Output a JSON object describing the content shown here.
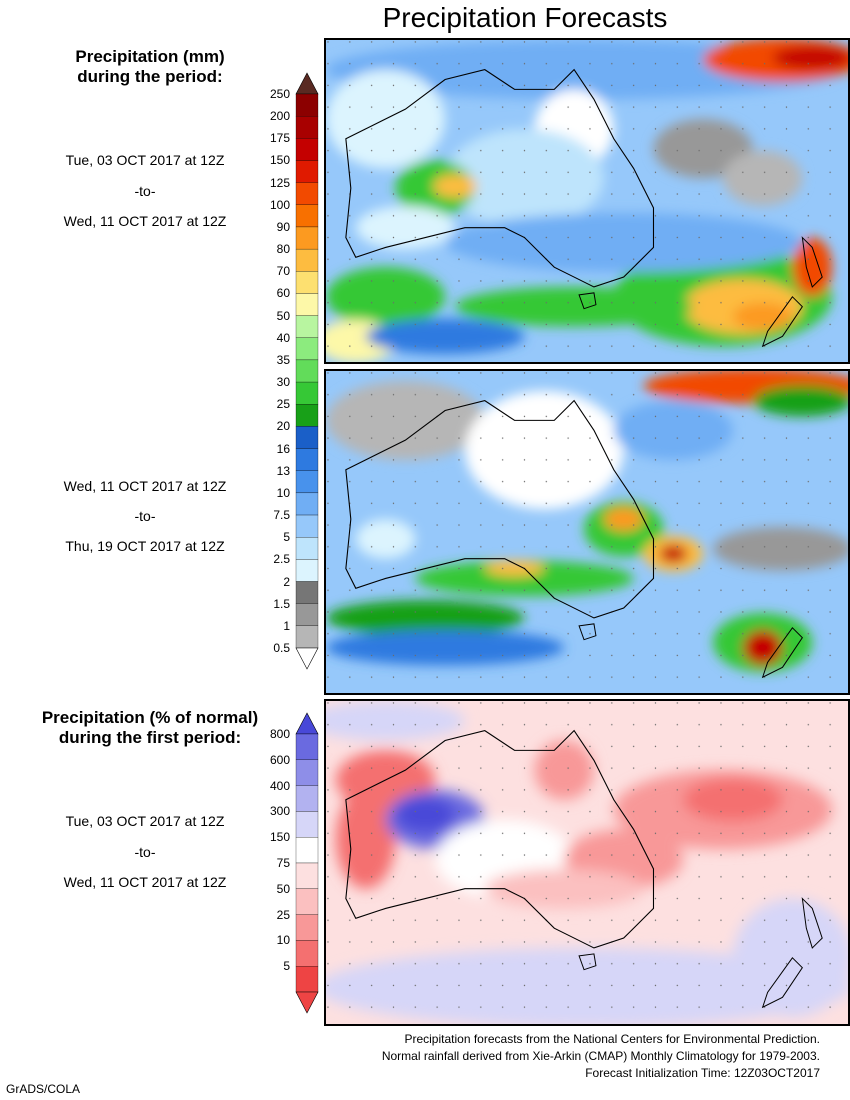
{
  "title": "Precipitation Forecasts",
  "amount_section": {
    "title_line1": "Precipitation (mm)",
    "title_line2": "during the period:",
    "periods": [
      {
        "start": "Tue, 03 OCT 2017 at 12Z",
        "sep": "-to-",
        "end": "Wed, 11 OCT 2017 at 12Z"
      },
      {
        "start": "Wed, 11 OCT 2017 at 12Z",
        "sep": "-to-",
        "end": "Thu, 19 OCT 2017 at 12Z"
      }
    ],
    "legend": [
      {
        "label": "250",
        "color": "#5a2a22"
      },
      {
        "label": "200",
        "color": "#8c0000"
      },
      {
        "label": "175",
        "color": "#a80000"
      },
      {
        "label": "150",
        "color": "#c40000"
      },
      {
        "label": "125",
        "color": "#e01a00"
      },
      {
        "label": "100",
        "color": "#f24a00"
      },
      {
        "label": "90",
        "color": "#f87000"
      },
      {
        "label": "80",
        "color": "#fc9a20"
      },
      {
        "label": "70",
        "color": "#fdbc40"
      },
      {
        "label": "60",
        "color": "#fde070"
      },
      {
        "label": "50",
        "color": "#fdf8a8"
      },
      {
        "label": "40",
        "color": "#b8f5a0"
      },
      {
        "label": "35",
        "color": "#8ceb7e"
      },
      {
        "label": "30",
        "color": "#62dc5a"
      },
      {
        "label": "25",
        "color": "#36c836"
      },
      {
        "label": "20",
        "color": "#18a018"
      },
      {
        "label": "16",
        "color": "#1a5fc8"
      },
      {
        "label": "13",
        "color": "#2e7ae0"
      },
      {
        "label": "10",
        "color": "#4892ec"
      },
      {
        "label": "7.5",
        "color": "#70aef4"
      },
      {
        "label": "5",
        "color": "#96c8fa"
      },
      {
        "label": "2.5",
        "color": "#bee4fc"
      },
      {
        "label": "2",
        "color": "#dcf4fe"
      },
      {
        "label": "1.5",
        "color": "#767676"
      },
      {
        "label": "1",
        "color": "#989898"
      },
      {
        "label": "0.5",
        "color": "#b6b6b6"
      }
    ]
  },
  "percent_section": {
    "title_line1": "Precipitation (% of normal)",
    "title_line2": "during the first period:",
    "period": {
      "start": "Tue, 03 OCT 2017 at 12Z",
      "sep": "-to-",
      "end": "Wed, 11 OCT 2017 at 12Z"
    },
    "legend": [
      {
        "label": "800",
        "color": "#4848d8"
      },
      {
        "label": "600",
        "color": "#6a6ae0"
      },
      {
        "label": "400",
        "color": "#8e8ee8"
      },
      {
        "label": "300",
        "color": "#b2b2f0"
      },
      {
        "label": "150",
        "color": "#d6d6f8"
      },
      {
        "label": "75",
        "color": "#ffffff"
      },
      {
        "label": "50",
        "color": "#fde0e0"
      },
      {
        "label": "25",
        "color": "#fbc0c0"
      },
      {
        "label": "10",
        "color": "#f89898"
      },
      {
        "label": "5",
        "color": "#f47070"
      },
      {
        "label": "",
        "color": "#ee4444"
      }
    ]
  },
  "footer": {
    "line1": "Precipitation forecasts from the National Centers for Environmental Prediction.",
    "line2": "Normal rainfall derived from Xie-Arkin (CMAP) Monthly Climatology for 1979-2003.",
    "line3": "Forecast Initialization Time: 12Z03OCT2017"
  },
  "credit": "GrADS/COLA"
}
